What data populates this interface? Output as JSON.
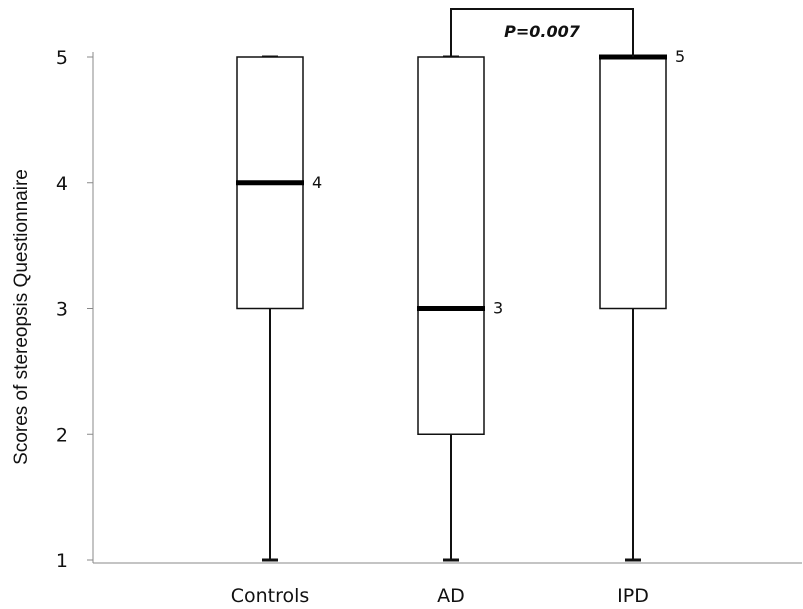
{
  "chart_data": {
    "type": "box",
    "ylabel": "Scores of stereopsis Questionnaire",
    "xlabel": "",
    "ylim": [
      1,
      5
    ],
    "yticks": [
      1,
      2,
      3,
      4,
      5
    ],
    "categories": [
      "Controls",
      "AD",
      "IPD"
    ],
    "boxes": [
      {
        "category": "Controls",
        "min": 1,
        "q1": 3,
        "median": 4,
        "q3": 5,
        "max": 5,
        "median_label": "4"
      },
      {
        "category": "AD",
        "min": 1,
        "q1": 2,
        "median": 3,
        "q3": 5,
        "max": 5,
        "median_label": "3"
      },
      {
        "category": "IPD",
        "min": 1,
        "q1": 3,
        "median": 5,
        "q3": 5,
        "max": 5,
        "median_label": "5"
      }
    ],
    "annotations": [
      {
        "type": "significance-bracket",
        "from": "AD",
        "to": "IPD",
        "text": "P=0.007"
      }
    ],
    "grid": false,
    "legend": "none"
  }
}
